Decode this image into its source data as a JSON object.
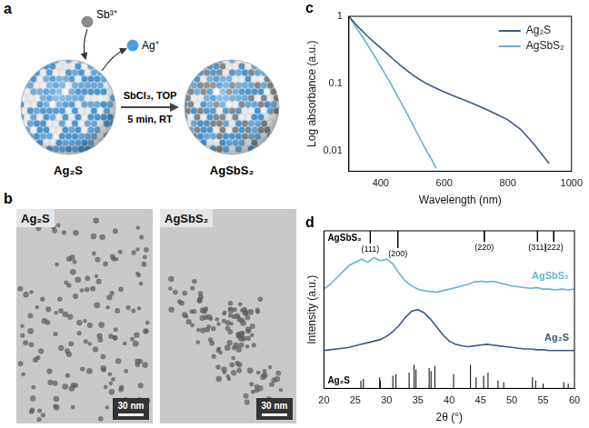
{
  "panel_a": {
    "letter": "a",
    "incoming_ion": "Sb³⁺",
    "outgoing_ion": "Ag⁺",
    "reagents": "SbCl₃, TOP",
    "conditions": "5 min, RT",
    "start": "Ag₂S",
    "product": "AgSbS₂"
  },
  "panel_b": {
    "letter": "b",
    "images": [
      {
        "label": "Ag₂S",
        "scale_bar": "30 nm"
      },
      {
        "label": "AgSbS₂",
        "scale_bar": "30 nm"
      }
    ]
  },
  "chart_data": [
    {
      "letter": "c",
      "type": "line",
      "x_label": "Wavelength (nm)",
      "y_label": "Log absorbance (a.u.)",
      "log": "y",
      "grid": false,
      "legend": "upper right",
      "xlim": [
        300,
        1000
      ],
      "xticks": [
        400,
        600,
        800,
        1000
      ],
      "ylim": [
        0.005,
        1
      ],
      "yticks": [
        0.01,
        0.1,
        1
      ],
      "series": [
        {
          "name": "Ag₂S",
          "color": "#3b5b85",
          "x": [
            300,
            320,
            340,
            360,
            380,
            400,
            420,
            440,
            460,
            480,
            500,
            520,
            540,
            560,
            580,
            600,
            640,
            680,
            720,
            760,
            800,
            840,
            880,
            910,
            930
          ],
          "values": [
            1,
            0.78,
            0.62,
            0.5,
            0.41,
            0.34,
            0.28,
            0.23,
            0.19,
            0.16,
            0.135,
            0.117,
            0.103,
            0.092,
            0.083,
            0.075,
            0.063,
            0.053,
            0.044,
            0.036,
            0.029,
            0.021,
            0.013,
            0.0085,
            0.0065
          ]
        },
        {
          "name": "AgSbS₂",
          "color": "#6aaed6",
          "x": [
            300,
            320,
            340,
            360,
            380,
            400,
            420,
            440,
            460,
            480,
            500,
            520,
            540,
            560,
            575
          ],
          "values": [
            1,
            0.72,
            0.52,
            0.37,
            0.26,
            0.18,
            0.125,
            0.085,
            0.057,
            0.038,
            0.025,
            0.0165,
            0.011,
            0.0075,
            0.0055
          ]
        }
      ]
    },
    {
      "letter": "d",
      "type": "line",
      "x_label": "2θ (°)",
      "y_label": "Intensity (a.u.)",
      "grid": false,
      "tick_labels": "x",
      "xlim": [
        20,
        60
      ],
      "xticks": [
        20,
        25,
        30,
        35,
        40,
        45,
        50,
        55,
        60
      ],
      "ylim": [
        0,
        10
      ],
      "series": [
        {
          "name": "AgSbS₂",
          "type": "line",
          "color": "#6aaed6",
          "x": [
            20,
            21,
            22,
            23,
            24,
            25,
            26,
            27,
            28,
            29,
            30,
            31,
            32,
            33,
            34,
            35,
            36,
            37,
            38,
            39,
            40,
            41,
            42,
            43,
            44,
            45,
            46,
            47,
            48,
            49,
            50,
            51,
            52,
            53,
            54,
            55,
            56,
            57,
            58,
            59,
            60
          ],
          "values": [
            6.3,
            6.6,
            7.0,
            7.4,
            7.8,
            8.0,
            8.2,
            8.0,
            8.3,
            8.1,
            8.2,
            7.9,
            7.3,
            6.8,
            6.5,
            6.3,
            6.2,
            6.15,
            6.1,
            6.2,
            6.3,
            6.4,
            6.5,
            6.6,
            6.75,
            6.8,
            6.75,
            6.8,
            6.7,
            6.6,
            6.5,
            6.45,
            6.4,
            6.35,
            6.4,
            6.3,
            6.3,
            6.25,
            6.3,
            6.25,
            6.3
          ]
        },
        {
          "name": "Ag₂S",
          "type": "line",
          "color": "#3b5b85",
          "x": [
            20,
            21,
            22,
            23,
            24,
            25,
            26,
            27,
            28,
            29,
            30,
            31,
            32,
            33,
            34,
            35,
            36,
            37,
            38,
            39,
            40,
            41,
            42,
            43,
            44,
            45,
            46,
            47,
            48,
            49,
            50,
            51,
            52,
            53,
            54,
            55,
            56,
            57,
            58,
            59,
            60
          ],
          "values": [
            2.4,
            2.45,
            2.5,
            2.55,
            2.6,
            2.7,
            2.8,
            2.9,
            3.0,
            3.1,
            3.3,
            3.6,
            4.0,
            4.5,
            4.9,
            5.0,
            4.8,
            4.4,
            3.9,
            3.4,
            3.0,
            2.8,
            2.7,
            2.65,
            2.7,
            2.75,
            2.8,
            2.75,
            2.7,
            2.65,
            2.6,
            2.55,
            2.5,
            2.5,
            2.45,
            2.45,
            2.4,
            2.4,
            2.4,
            2.4,
            2.4
          ]
        },
        {
          "name": "AgSbS₂",
          "type": "stick",
          "color": "#000000",
          "base": 10,
          "x": [
            27.4,
            31.8,
            45.6,
            54.1,
            56.7
          ],
          "values": [
            9.2,
            8.9,
            9.3,
            9.3,
            9.3
          ],
          "labels": [
            "(111)",
            "(200)",
            "(220)",
            "(311)",
            "(222)"
          ]
        },
        {
          "name": "Ag₂S",
          "type": "stick",
          "color": "#000000",
          "base": 0,
          "x": [
            25.9,
            26.3,
            28.9,
            29.0,
            31.0,
            31.5,
            33.6,
            34.4,
            34.7,
            36.8,
            37.1,
            37.7,
            40.7,
            43.4,
            44.3,
            45.5,
            46.2,
            47.8,
            48.7,
            53.3,
            53.8,
            55.0,
            58.3,
            59.0
          ],
          "values": [
            0.5,
            0.6,
            0.7,
            0.5,
            0.8,
            0.9,
            1.0,
            1.5,
            1.2,
            1.3,
            1.1,
            1.4,
            0.9,
            1.5,
            0.7,
            0.8,
            1.0,
            0.5,
            0.4,
            0.7,
            0.5,
            0.3,
            0.4,
            0.3
          ]
        }
      ]
    }
  ]
}
